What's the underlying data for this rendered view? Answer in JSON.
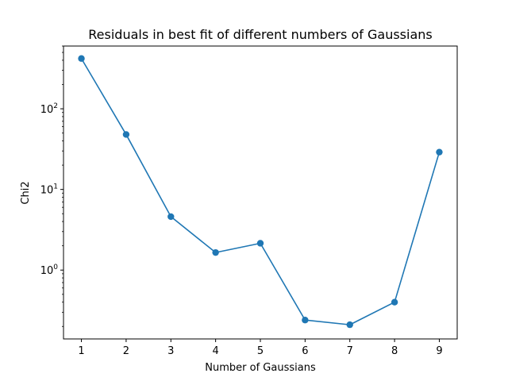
{
  "chart_data": {
    "type": "line",
    "title": "Residuals in best fit of different numbers of Gaussians",
    "xlabel": "Number of Gaussians",
    "ylabel": "Chi2",
    "yscale": "log",
    "xlim": [
      0.6,
      9.4
    ],
    "ylim": [
      0.14,
      600
    ],
    "grid": false,
    "x": [
      1,
      2,
      3,
      4,
      5,
      6,
      7,
      8,
      9
    ],
    "series": [
      {
        "values": [
          420,
          48,
          4.6,
          1.65,
          2.15,
          0.24,
          0.21,
          0.4,
          29
        ],
        "color": "#1f77b4",
        "marker": "circle"
      }
    ],
    "x_ticks": [
      1,
      2,
      3,
      4,
      5,
      6,
      7,
      8,
      9
    ],
    "y_ticks": [
      {
        "value": 1,
        "base": "10",
        "exp": "0"
      },
      {
        "value": 10,
        "base": "10",
        "exp": "1"
      },
      {
        "value": 100,
        "base": "10",
        "exp": "2"
      }
    ]
  }
}
